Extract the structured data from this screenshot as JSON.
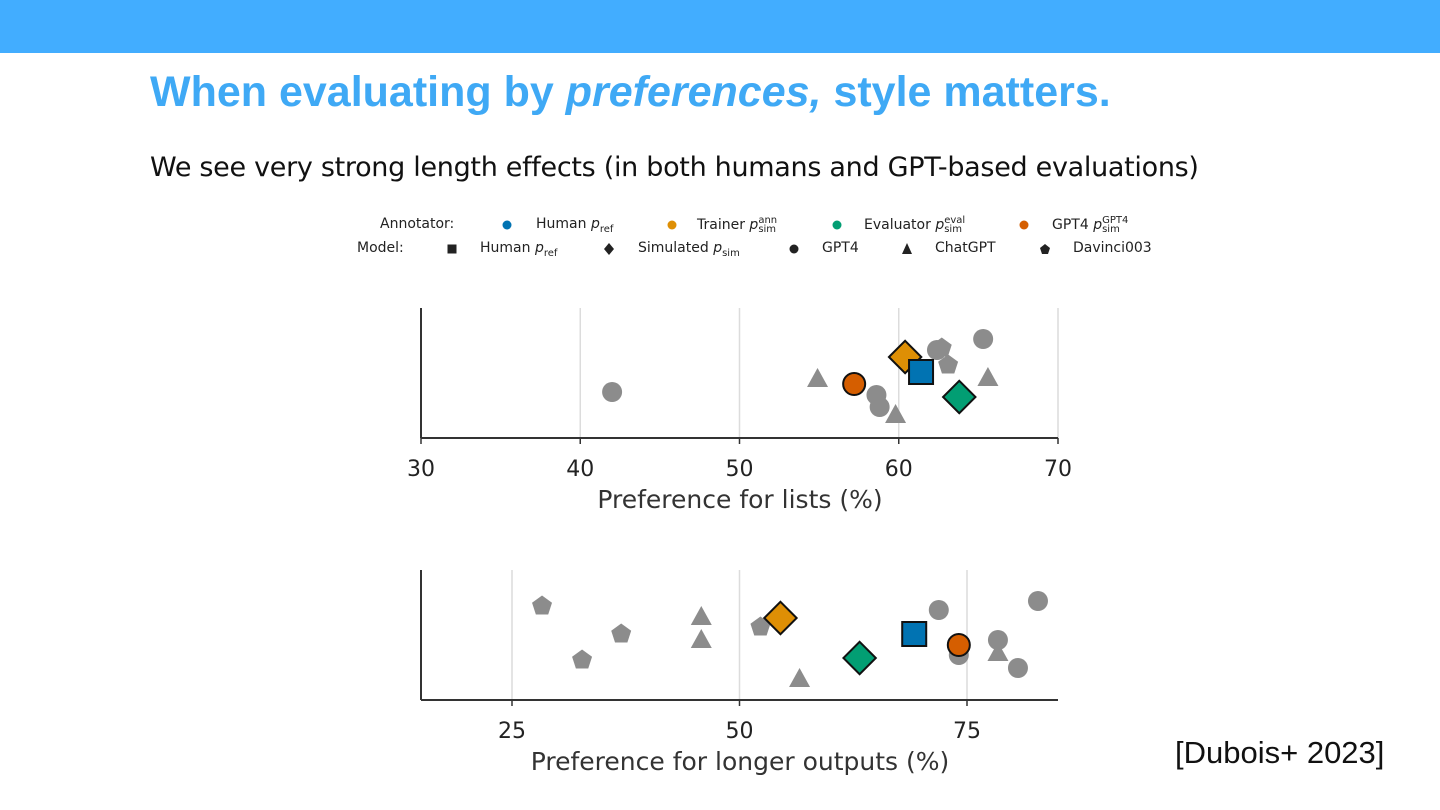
{
  "slide": {
    "title_pre": "When evaluating by ",
    "title_em": "preferences,",
    "title_post": " style matters.",
    "subtitle": "We see very strong length effects (in both humans and GPT-based evaluations)",
    "citation": "[Dubois+ 2023]",
    "header_color": "#42adff",
    "title_color": "#3fa9f5"
  },
  "legend": {
    "annotator_label": "Annotator:",
    "model_label": "Model:",
    "annotators": [
      {
        "name": "Human",
        "p": "p",
        "sub": "ref",
        "sup": "",
        "color": "#0173b2"
      },
      {
        "name": "Trainer",
        "p": "p",
        "sub": "sim",
        "sup": "ann",
        "color": "#de8f05"
      },
      {
        "name": "Evaluator",
        "p": "p",
        "sub": "sim",
        "sup": "eval",
        "color": "#029e73"
      },
      {
        "name": "GPT4",
        "p": "p",
        "sub": "sim",
        "sup": "GPT4",
        "color": "#d55e00"
      }
    ],
    "models": [
      {
        "name": "Human",
        "p": "p",
        "sub": "ref",
        "marker": "square"
      },
      {
        "name": "Simulated",
        "p": "p",
        "sub": "sim",
        "marker": "diamond"
      },
      {
        "name": "GPT4",
        "p": "",
        "sub": "",
        "marker": "circle"
      },
      {
        "name": "ChatGPT",
        "p": "",
        "sub": "",
        "marker": "triangle"
      },
      {
        "name": "Davinci003",
        "p": "",
        "sub": "",
        "marker": "pentagon"
      }
    ]
  },
  "chart_data": [
    {
      "type": "scatter",
      "xlabel": "Preference for lists (%)",
      "xlim": [
        30,
        70
      ],
      "xticks": [
        "30",
        "40",
        "50",
        "60",
        "70"
      ],
      "grid": "vertical",
      "points": [
        {
          "x": 42.0,
          "model": "GPT4",
          "annotator": null
        },
        {
          "x": 54.9,
          "model": "ChatGPT",
          "annotator": null
        },
        {
          "x": 58.6,
          "model": "GPT4",
          "annotator": null
        },
        {
          "x": 58.8,
          "model": "GPT4",
          "annotator": null
        },
        {
          "x": 59.8,
          "model": "ChatGPT",
          "annotator": null
        },
        {
          "x": 62.4,
          "model": "GPT4",
          "annotator": null
        },
        {
          "x": 62.7,
          "model": "Davinci003",
          "annotator": null
        },
        {
          "x": 63.1,
          "model": "Davinci003",
          "annotator": null
        },
        {
          "x": 65.3,
          "model": "GPT4",
          "annotator": null
        },
        {
          "x": 65.6,
          "model": "ChatGPT",
          "annotator": null
        },
        {
          "x": 57.2,
          "model": "GPT4",
          "annotator": "GPT4"
        },
        {
          "x": 60.4,
          "model": "Simulated",
          "annotator": "Trainer"
        },
        {
          "x": 61.4,
          "model": "Human",
          "annotator": "Human"
        },
        {
          "x": 63.8,
          "model": "Simulated",
          "annotator": "Evaluator"
        }
      ]
    },
    {
      "type": "scatter",
      "xlabel": "Preference for longer outputs (%)",
      "xlim": [
        15,
        85
      ],
      "xticks": [
        "25",
        "50",
        "75"
      ],
      "grid": "vertical",
      "points": [
        {
          "x": 28.3,
          "model": "Davinci003",
          "annotator": null
        },
        {
          "x": 32.7,
          "model": "Davinci003",
          "annotator": null
        },
        {
          "x": 37.0,
          "model": "Davinci003",
          "annotator": null
        },
        {
          "x": 45.8,
          "model": "ChatGPT",
          "annotator": null
        },
        {
          "x": 45.8,
          "model": "ChatGPT",
          "annotator": null
        },
        {
          "x": 52.3,
          "model": "Davinci003",
          "annotator": null
        },
        {
          "x": 56.6,
          "model": "ChatGPT",
          "annotator": null
        },
        {
          "x": 71.9,
          "model": "GPT4",
          "annotator": null
        },
        {
          "x": 74.1,
          "model": "GPT4",
          "annotator": null
        },
        {
          "x": 78.4,
          "model": "GPT4",
          "annotator": null
        },
        {
          "x": 78.4,
          "model": "ChatGPT",
          "annotator": null
        },
        {
          "x": 80.6,
          "model": "GPT4",
          "annotator": null
        },
        {
          "x": 82.8,
          "model": "GPT4",
          "annotator": null
        },
        {
          "x": 54.5,
          "model": "Simulated",
          "annotator": "Trainer"
        },
        {
          "x": 63.2,
          "model": "Simulated",
          "annotator": "Evaluator"
        },
        {
          "x": 69.2,
          "model": "Human",
          "annotator": "Human"
        },
        {
          "x": 74.1,
          "model": "GPT4",
          "annotator": "GPT4"
        }
      ]
    }
  ]
}
